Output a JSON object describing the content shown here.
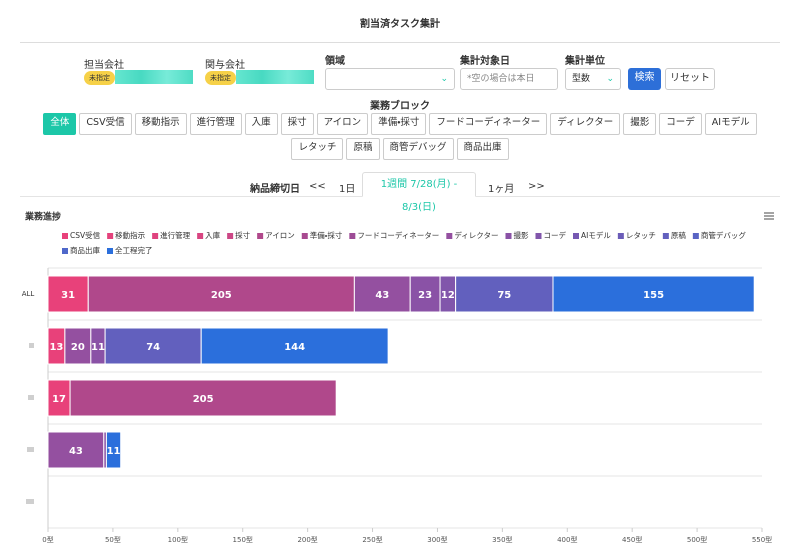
{
  "header": {
    "title": "割当済タスク集計"
  },
  "filters": {
    "assignee_company": {
      "label": "担当会社",
      "tag": "未指定"
    },
    "related_company": {
      "label": "関与会社",
      "tag": "未指定"
    },
    "domain": {
      "label": "領域"
    },
    "target_date": {
      "label": "集計対象日",
      "placeholder": "*空の場合は本日"
    },
    "unit": {
      "label": "集計単位",
      "value": "型数"
    },
    "search": "検索",
    "reset": "リセット"
  },
  "business_block": {
    "label": "業務ブロック",
    "options": [
      "全体",
      "CSV受信",
      "移動指示",
      "進行管理",
      "入庫",
      "採寸",
      "アイロン",
      "準備・採寸",
      "フードコーディネーター",
      "ディレクター",
      "撮影",
      "コーデ",
      "AIモデル",
      "レタッチ",
      "原稿",
      "商管デバッグ",
      "商品出庫"
    ]
  },
  "date_nav": {
    "label": "納品締切日",
    "prev": "<<",
    "options": [
      "1日",
      "1週間 7/28(月) - 8/3(日)",
      "1ヶ月"
    ],
    "next": ">>"
  },
  "chart_data": {
    "type": "bar",
    "orientation": "horizontal",
    "stacked": true,
    "title": "業務進捗",
    "categories": [
      "ALL",
      null,
      null,
      null,
      null
    ],
    "series": [
      {
        "name": "CSV受信",
        "color": "#e8417a",
        "values": [
          31,
          13,
          17,
          null,
          null
        ]
      },
      {
        "name": "移動指示",
        "color": "#e4427c",
        "values": [
          null,
          null,
          null,
          null,
          null
        ]
      },
      {
        "name": "進行管理",
        "color": "#df437e",
        "values": [
          null,
          null,
          null,
          null,
          null
        ]
      },
      {
        "name": "入庫",
        "color": "#d84581",
        "values": [
          null,
          null,
          null,
          null,
          null
        ]
      },
      {
        "name": "採寸",
        "color": "#cc4786",
        "values": [
          null,
          null,
          null,
          null,
          null
        ]
      },
      {
        "name": "アイロン",
        "color": "#b0488b",
        "values": [
          205,
          null,
          205,
          null,
          null
        ]
      },
      {
        "name": "準備・採寸",
        "color": "#a84a90",
        "values": [
          null,
          null,
          null,
          null,
          null
        ]
      },
      {
        "name": "フードコーディネーター",
        "color": "#9d4c96",
        "values": [
          null,
          null,
          null,
          null,
          null
        ]
      },
      {
        "name": "ディレクター",
        "color": "#9450a0",
        "values": [
          43,
          20,
          null,
          43,
          null
        ]
      },
      {
        "name": "撮影",
        "color": "#8a52a6",
        "values": [
          23,
          11,
          null,
          2,
          null
        ]
      },
      {
        "name": "コーデ",
        "color": "#8156ab",
        "values": [
          12,
          null,
          null,
          null,
          null
        ]
      },
      {
        "name": "AIモデル",
        "color": "#7659b2",
        "values": [
          null,
          null,
          null,
          null,
          null
        ]
      },
      {
        "name": "レタッチ",
        "color": "#6b5cb8",
        "values": [
          null,
          null,
          null,
          null,
          null
        ]
      },
      {
        "name": "原稿",
        "color": "#6260be",
        "values": [
          75,
          74,
          null,
          null,
          null
        ]
      },
      {
        "name": "商管デバッグ",
        "color": "#5964c4",
        "values": [
          null,
          null,
          null,
          null,
          null
        ]
      },
      {
        "name": "商品出庫",
        "color": "#4f68ca",
        "values": [
          null,
          null,
          null,
          null,
          null
        ]
      },
      {
        "name": "全工程完了",
        "color": "#2b6fdc",
        "values": [
          155,
          144,
          null,
          11,
          null
        ]
      }
    ],
    "xlim": [
      0,
      550
    ],
    "xticks": [
      {
        "value": 0,
        "label": "0型"
      },
      {
        "value": 50,
        "label": "50型"
      },
      {
        "value": 100,
        "label": "100型"
      },
      {
        "value": 150,
        "label": "150型"
      },
      {
        "value": 200,
        "label": "200型"
      },
      {
        "value": 250,
        "label": "250型"
      },
      {
        "value": 300,
        "label": "300型"
      },
      {
        "value": 350,
        "label": "350型"
      },
      {
        "value": 400,
        "label": "400型"
      },
      {
        "value": 450,
        "label": "450型"
      },
      {
        "value": 500,
        "label": "500型"
      },
      {
        "value": 550,
        "label": "550型"
      }
    ],
    "grid": true
  }
}
